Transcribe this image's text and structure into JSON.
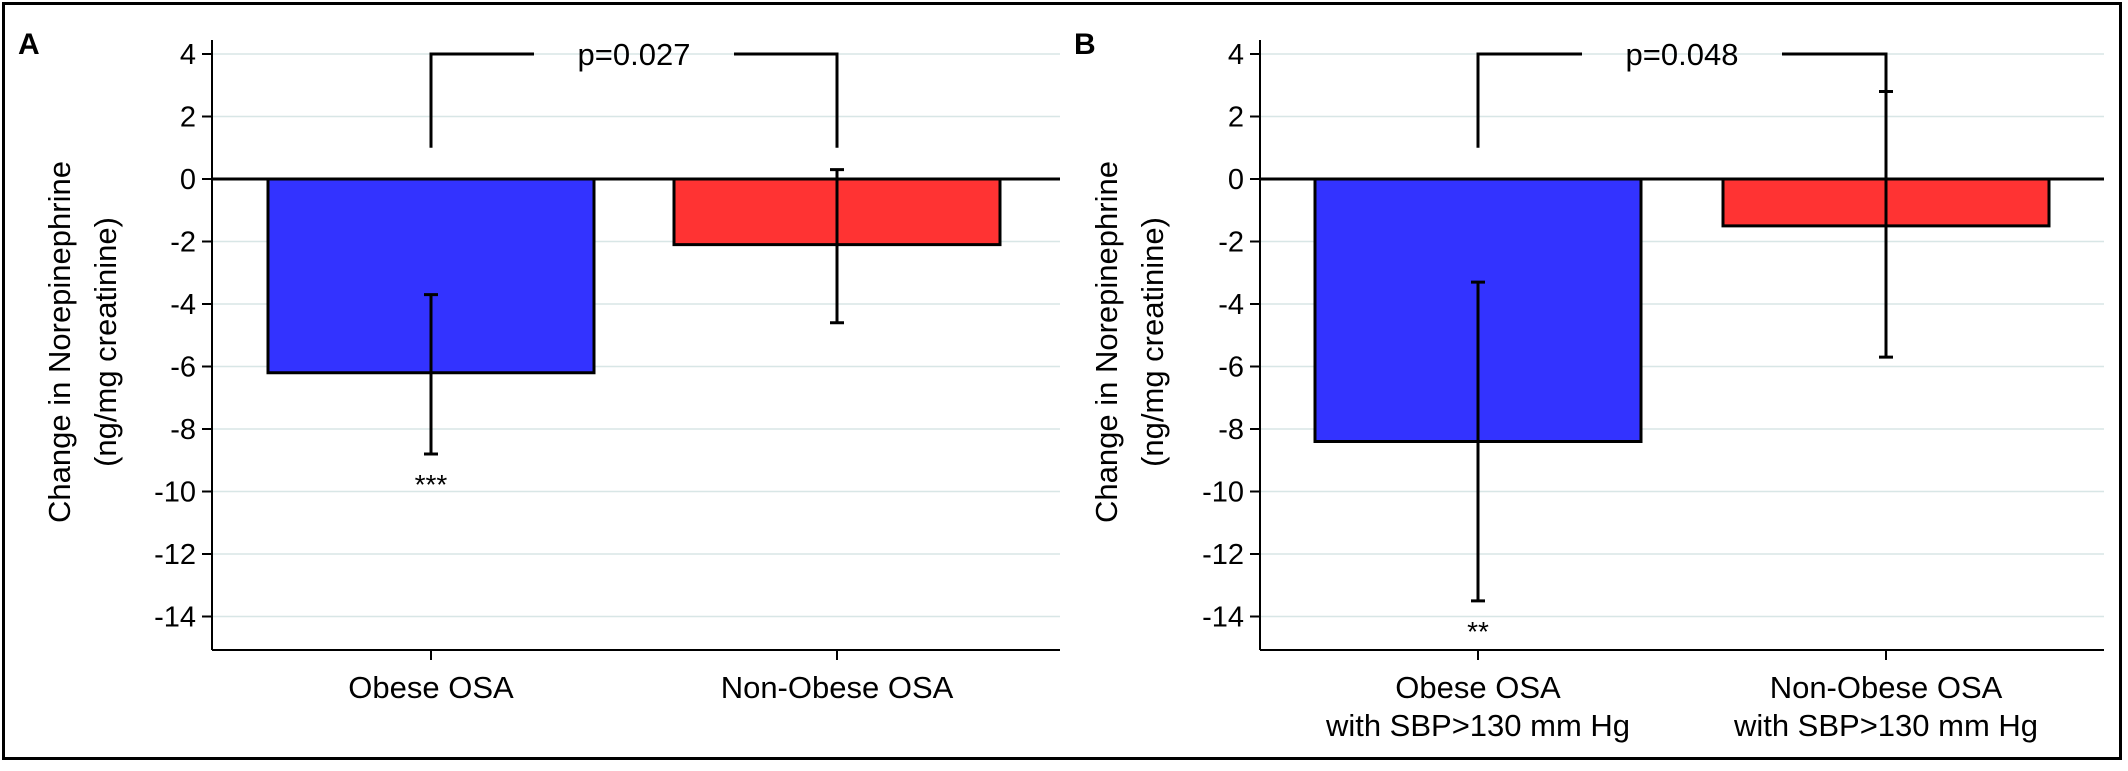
{
  "chart_data": [
    {
      "panel_label": "A",
      "type": "bar",
      "ylabel_line1": "Change in Norepinephrine",
      "ylabel_line2": "(ng/mg creatinine)",
      "ylim": [
        -15,
        4.5
      ],
      "yticks": [
        4,
        2,
        0,
        -2,
        -4,
        -6,
        -8,
        -10,
        -12,
        -14
      ],
      "ytick_labels": [
        "4",
        "2",
        "0",
        "-2",
        "-4",
        "-6",
        "-8",
        "-10",
        "-12",
        "-14"
      ],
      "grid": true,
      "categories": [
        [
          "Obese OSA"
        ],
        [
          "Non-Obese OSA"
        ]
      ],
      "values": [
        -6.2,
        -2.1
      ],
      "error_low": [
        -8.8,
        -4.6
      ],
      "error_high": [
        -3.7,
        0.3
      ],
      "colors": [
        "#3333ff",
        "#ff3333"
      ],
      "annotations": [
        "***",
        ""
      ],
      "bracket": {
        "label": "p=0.027",
        "y": 4.0,
        "from_y": 1.0
      }
    },
    {
      "panel_label": "B",
      "type": "bar",
      "ylabel_line1": "Change in Norepinephrine",
      "ylabel_line2": "(ng/mg creatinine)",
      "ylim": [
        -15,
        4.5
      ],
      "yticks": [
        4,
        2,
        0,
        -2,
        -4,
        -6,
        -8,
        -10,
        -12,
        -14
      ],
      "ytick_labels": [
        "4",
        "2",
        "0",
        "-2",
        "-4",
        "-6",
        "-8",
        "-10",
        "-12",
        "-14"
      ],
      "grid": true,
      "categories": [
        [
          "Obese OSA",
          "with SBP>130 mm Hg"
        ],
        [
          "Non-Obese OSA",
          "with SBP>130 mm Hg"
        ]
      ],
      "values": [
        -8.4,
        -1.5
      ],
      "error_low": [
        -13.5,
        -5.7
      ],
      "error_high": [
        -3.3,
        2.8
      ],
      "colors": [
        "#3333ff",
        "#ff3333"
      ],
      "annotations": [
        "**",
        ""
      ],
      "bracket": {
        "label": "p=0.048",
        "y": 4.0,
        "from_y": 1.0
      }
    }
  ]
}
